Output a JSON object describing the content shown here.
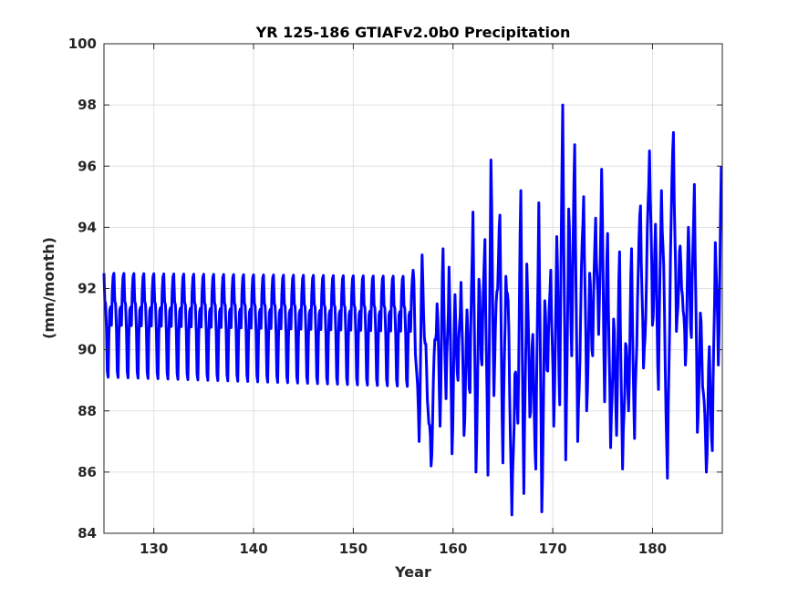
{
  "chart_data": {
    "type": "line",
    "title": "YR 125-186 GTIAFv2.0b0 Precipitation",
    "xlabel": "Year",
    "ylabel": "(mm/month)",
    "xlim": [
      125,
      187
    ],
    "ylim": [
      84,
      100
    ],
    "xticks": [
      130,
      140,
      150,
      160,
      170,
      180
    ],
    "yticks": [
      84,
      86,
      88,
      90,
      92,
      94,
      96,
      98,
      100
    ],
    "grid": true,
    "series": [
      {
        "color": "#0000ff",
        "regular_segment": {
          "start_year": 125,
          "end_year": 156,
          "monthly_cycle": [
            92.5,
            91.6,
            91.5,
            90.7,
            89.3,
            89.1,
            90.5,
            91.3,
            91.4,
            90.8,
            91.9,
            92.4
          ],
          "cycle_peak_range_start_end": [
            92.5,
            92.4
          ],
          "cycle_trough_range_start_end": [
            89.1,
            88.8
          ]
        },
        "irregular_segment": {
          "x": [
            156.0,
            156.3,
            156.6,
            156.9,
            157.2,
            157.5,
            157.8,
            158.1,
            158.4,
            158.7,
            159.0,
            159.3,
            159.6,
            159.9,
            160.2,
            160.5,
            160.8,
            161.1,
            161.4,
            161.7,
            162.0,
            162.3,
            162.6,
            162.9,
            163.2,
            163.5,
            163.8,
            164.1,
            164.4,
            164.7,
            165.0,
            165.3,
            165.6,
            165.9,
            166.2,
            166.5,
            166.8,
            167.1,
            167.4,
            167.7,
            168.0,
            168.3,
            168.6,
            168.9,
            169.2,
            169.5,
            169.8,
            170.1,
            170.4,
            170.7,
            171.0,
            171.3,
            171.6,
            171.9,
            172.2,
            172.5,
            172.8,
            173.1,
            173.4,
            173.7,
            174.0,
            174.3,
            174.6,
            174.9,
            175.2,
            175.5,
            175.8,
            176.1,
            176.4,
            176.7,
            177.0,
            177.3,
            177.6,
            177.9,
            178.2,
            178.5,
            178.8,
            179.1,
            179.4,
            179.7,
            180.0,
            180.3,
            180.6,
            180.9,
            181.2,
            181.5,
            181.8,
            182.1,
            182.4,
            182.7,
            183.0,
            183.3,
            183.6,
            183.9,
            184.2,
            184.5,
            184.8,
            185.1,
            185.4,
            185.7,
            186.0,
            186.3,
            186.6,
            186.9
          ],
          "y": [
            92.6,
            89.5,
            87.0,
            93.1,
            90.2,
            88.0,
            86.2,
            89.8,
            91.5,
            87.5,
            93.3,
            88.4,
            92.7,
            86.6,
            91.8,
            89.0,
            92.2,
            87.2,
            91.3,
            88.6,
            94.5,
            86.0,
            92.3,
            89.5,
            93.6,
            85.9,
            96.2,
            88.5,
            91.9,
            94.4,
            86.3,
            92.4,
            90.6,
            84.6,
            89.2,
            87.6,
            95.2,
            85.3,
            92.8,
            87.8,
            90.5,
            86.1,
            94.8,
            84.7,
            91.6,
            89.3,
            92.6,
            87.5,
            93.7,
            88.2,
            98.0,
            86.4,
            94.6,
            89.8,
            96.7,
            87.0,
            91.2,
            95.0,
            88.0,
            92.5,
            89.8,
            94.3,
            90.5,
            95.9,
            88.3,
            93.8,
            86.8,
            91.0,
            87.2,
            93.2,
            86.1,
            90.2,
            88.0,
            93.3,
            87.1,
            91.6,
            94.7,
            89.4,
            92.3,
            96.5,
            90.8,
            94.1,
            88.7,
            95.2,
            91.3,
            85.8,
            93.0,
            97.1,
            90.6,
            93.2,
            91.8,
            89.5,
            94.0,
            90.4,
            95.4,
            87.3,
            91.2,
            88.6,
            86.0,
            90.1,
            86.7,
            93.5,
            89.5,
            96.0
          ]
        }
      }
    ]
  }
}
